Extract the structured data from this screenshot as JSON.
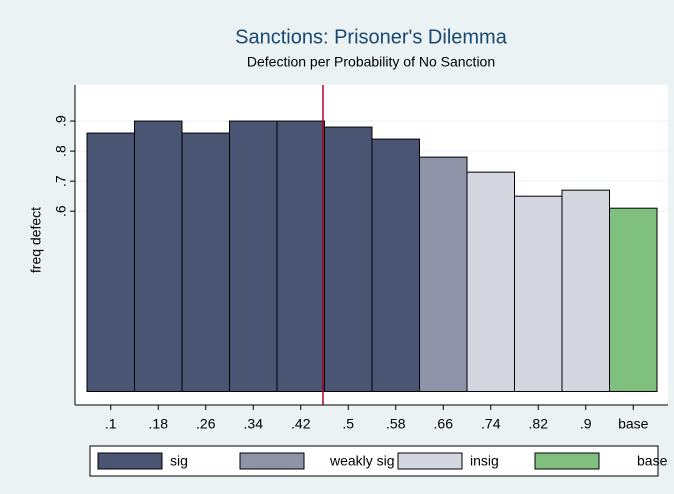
{
  "chart_data": {
    "type": "bar",
    "title": "Sanctions: Prisoner's Dilemma",
    "subtitle": "Defection per Probability of No Sanction",
    "y_label": "freq defect",
    "categories": [
      ".1",
      ".18",
      ".26",
      ".34",
      ".42",
      ".5",
      ".58",
      ".66",
      ".74",
      ".82",
      ".9",
      "base"
    ],
    "series": [
      {
        "name": "sig",
        "color": "#4a5574",
        "values": [
          0.86,
          0.9,
          0.86,
          0.9,
          0.9,
          0.88,
          0.84,
          null,
          null,
          null,
          null,
          null
        ]
      },
      {
        "name": "weakly sig",
        "color": "#8e93a8",
        "values": [
          null,
          null,
          null,
          null,
          null,
          null,
          null,
          0.78,
          null,
          null,
          null,
          null
        ]
      },
      {
        "name": "insig",
        "color": "#d4d6e0",
        "values": [
          null,
          null,
          null,
          null,
          null,
          null,
          null,
          null,
          0.73,
          0.65,
          0.67,
          null
        ]
      },
      {
        "name": "base",
        "color": "#7fc07f",
        "values": [
          null,
          null,
          null,
          null,
          null,
          null,
          null,
          null,
          null,
          null,
          null,
          0.61
        ]
      }
    ],
    "ylim": [
      -0.045,
      1.02
    ],
    "yticks": [
      {
        "value": 0.6,
        "label": ".6"
      },
      {
        "value": 0.7,
        "label": ".7"
      },
      {
        "value": 0.8,
        "label": ".8"
      },
      {
        "value": 0.9,
        "label": ".9"
      }
    ],
    "grid": true,
    "legend": "bottom"
  }
}
